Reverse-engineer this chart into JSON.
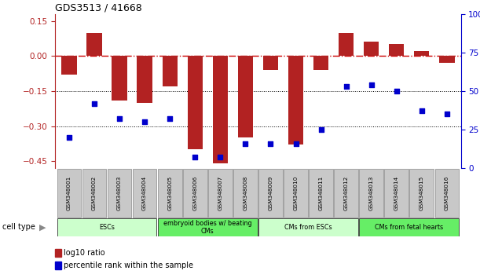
{
  "title": "GDS3513 / 41668",
  "samples": [
    "GSM348001",
    "GSM348002",
    "GSM348003",
    "GSM348004",
    "GSM348005",
    "GSM348006",
    "GSM348007",
    "GSM348008",
    "GSM348009",
    "GSM348010",
    "GSM348011",
    "GSM348012",
    "GSM348013",
    "GSM348014",
    "GSM348015",
    "GSM348016"
  ],
  "log10_ratio": [
    -0.08,
    0.1,
    -0.19,
    -0.2,
    -0.13,
    -0.4,
    -0.46,
    -0.35,
    -0.06,
    -0.38,
    -0.06,
    0.1,
    0.06,
    0.05,
    0.02,
    -0.03
  ],
  "percentile_rank": [
    20,
    42,
    32,
    30,
    32,
    7,
    7,
    16,
    16,
    16,
    25,
    53,
    54,
    50,
    37,
    35
  ],
  "bar_color": "#b22222",
  "dot_color": "#0000cc",
  "ylim_left": [
    -0.48,
    0.18
  ],
  "ylim_right": [
    0,
    100
  ],
  "yticks_left": [
    0.15,
    0,
    -0.15,
    -0.3,
    -0.45
  ],
  "yticks_right": [
    100,
    75,
    50,
    25,
    0
  ],
  "hline_zero_color": "#cc0000",
  "hline_other_color": "#000000",
  "cell_type_groups": [
    {
      "label": "ESCs",
      "start": 0,
      "end": 3,
      "color": "#ccffcc"
    },
    {
      "label": "embryoid bodies w/ beating\nCMs",
      "start": 4,
      "end": 7,
      "color": "#66ee66"
    },
    {
      "label": "CMs from ESCs",
      "start": 8,
      "end": 11,
      "color": "#ccffcc"
    },
    {
      "label": "CMs from fetal hearts",
      "start": 12,
      "end": 15,
      "color": "#66ee66"
    }
  ],
  "legend_items": [
    {
      "label": "log10 ratio",
      "color": "#b22222"
    },
    {
      "label": "percentile rank within the sample",
      "color": "#0000cc"
    }
  ],
  "cell_type_label": "cell type",
  "background_color": "#ffffff"
}
